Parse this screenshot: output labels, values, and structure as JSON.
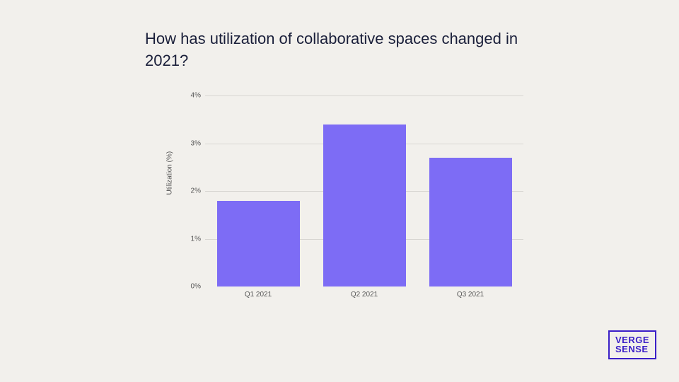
{
  "title": "How has utilization of collaborative spaces changed in 2021?",
  "chart": {
    "type": "bar",
    "ylabel": "Utilization (%)",
    "ylim": [
      0,
      4
    ],
    "ytick_step": 1,
    "yticks": [
      "0%",
      "1%",
      "2%",
      "3%",
      "4%"
    ],
    "categories": [
      "Q1 2021",
      "Q2 2021",
      "Q3 2021"
    ],
    "values": [
      1.8,
      3.4,
      2.7
    ],
    "bar_color": "#7d6cf5",
    "bar_width": 0.78,
    "background_color": "#f2f0ec",
    "grid_color": "#d8d6d2",
    "title_color": "#1a1f3a",
    "title_fontsize": 22,
    "tick_fontsize": 10,
    "label_fontsize": 10
  },
  "logo": {
    "line1": "VERGE",
    "line2": "SENSE",
    "color": "#3a1fc7"
  }
}
